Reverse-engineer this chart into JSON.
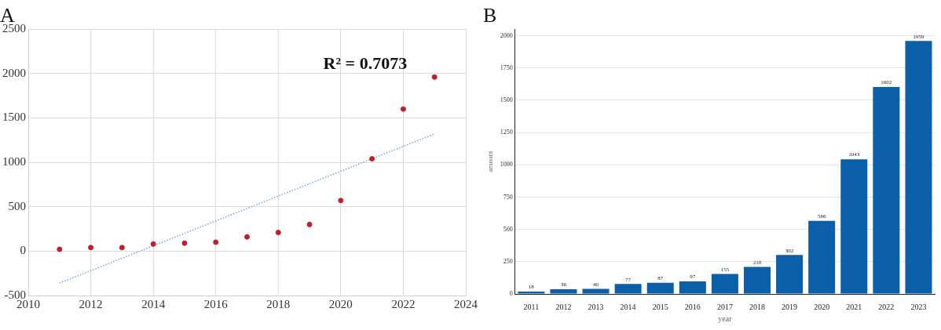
{
  "chart_data": [
    {
      "type": "scatter",
      "title": "A",
      "xlim": [
        2010,
        2024
      ],
      "xticks": [
        2010,
        2012,
        2014,
        2016,
        2018,
        2020,
        2022,
        2024
      ],
      "ylim": [
        -500,
        2500
      ],
      "yticks": [
        -500,
        0,
        500,
        1000,
        1500,
        2000,
        2500
      ],
      "grid": true,
      "annotations": [
        "R² = 0.7073"
      ],
      "series": [
        {
          "type": "scatter",
          "color": "#c0202a",
          "marker": "circle",
          "x": [
            2011,
            2012,
            2013,
            2014,
            2015,
            2016,
            2017,
            2018,
            2019,
            2020,
            2021,
            2022,
            2023
          ],
          "values": [
            20,
            40,
            40,
            80,
            90,
            100,
            160,
            210,
            300,
            570,
            1040,
            1600,
            1960
          ]
        },
        {
          "type": "line",
          "color": "#6fa8d8",
          "line_style": "dotted",
          "marker": "none",
          "x": [
            2011,
            2023
          ],
          "values": [
            -360,
            1320
          ]
        }
      ]
    },
    {
      "type": "bar",
      "title": "B",
      "xlabel": "year",
      "ylabel": "amount",
      "categories": [
        "2011",
        "2012",
        "2013",
        "2014",
        "2015",
        "2016",
        "2017",
        "2018",
        "2019",
        "2020",
        "2021",
        "2022",
        "2023"
      ],
      "values": [
        18,
        36,
        40,
        77,
        87,
        97,
        155,
        210,
        302,
        566,
        1043,
        1602,
        1959
      ],
      "color": "#0a5fa8",
      "ylim": [
        0,
        2050
      ],
      "yticks": [
        0,
        250,
        500,
        750,
        1000,
        1250,
        1500,
        1750,
        2000
      ],
      "grid": "y",
      "data_labels": true
    }
  ]
}
